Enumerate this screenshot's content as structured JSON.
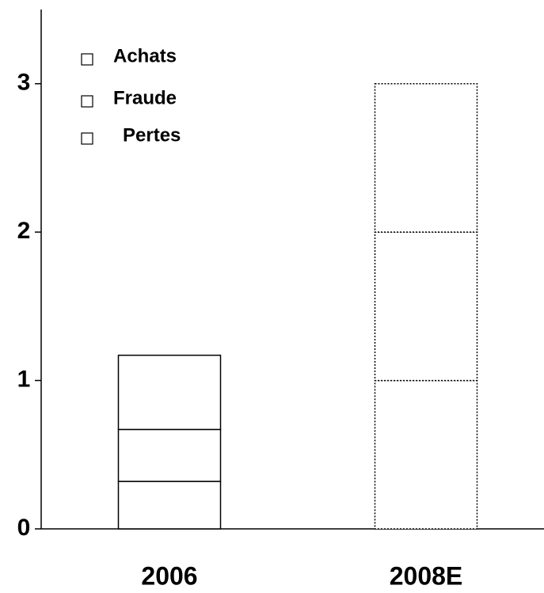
{
  "chart_data": {
    "type": "stacked_bar",
    "categories": [
      "2006",
      "2008E"
    ],
    "series": [
      {
        "name": "Pertes",
        "color": "#ffffff",
        "values": [
          0.32,
          1
        ]
      },
      {
        "name": "Fraude",
        "color": "#ffffff",
        "values": [
          0.35,
          1
        ]
      },
      {
        "name": "Achats",
        "color": "#ffffff",
        "values": [
          0.5,
          1
        ]
      }
    ],
    "border_styles": [
      "solid",
      "dotted"
    ],
    "ylim": [
      0,
      3.5
    ],
    "yticks": [
      0,
      1,
      2,
      3
    ],
    "grid": false,
    "legend": "top-left"
  }
}
